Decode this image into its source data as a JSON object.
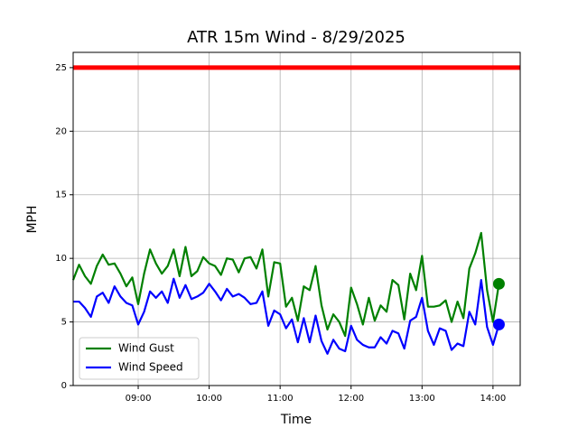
{
  "chart_data": {
    "type": "line",
    "title": "ATR 15m Wind - 8/29/2025",
    "xlabel": "Time",
    "ylabel": "MPH",
    "x": [
      "08:05",
      "08:10",
      "08:15",
      "08:20",
      "08:25",
      "08:30",
      "08:35",
      "08:40",
      "08:45",
      "08:50",
      "08:55",
      "09:00",
      "09:05",
      "09:10",
      "09:15",
      "09:20",
      "09:25",
      "09:30",
      "09:35",
      "09:40",
      "09:45",
      "09:50",
      "09:55",
      "10:00",
      "10:05",
      "10:10",
      "10:15",
      "10:20",
      "10:25",
      "10:30",
      "10:35",
      "10:40",
      "10:45",
      "10:50",
      "10:55",
      "11:00",
      "11:05",
      "11:10",
      "11:15",
      "11:20",
      "11:25",
      "11:30",
      "11:35",
      "11:40",
      "11:45",
      "11:50",
      "11:55",
      "12:00",
      "12:05",
      "12:10",
      "12:15",
      "12:20",
      "12:25",
      "12:30",
      "12:35",
      "12:40",
      "12:45",
      "12:50",
      "12:55",
      "13:00",
      "13:05",
      "13:10",
      "13:15",
      "13:20",
      "13:25",
      "13:30",
      "13:35",
      "13:40",
      "13:45",
      "13:50",
      "13:55",
      "14:00",
      "14:05"
    ],
    "series": [
      {
        "name": "Wind Gust",
        "color": "#008000",
        "values": [
          8.3,
          9.5,
          8.6,
          8.0,
          9.4,
          10.3,
          9.5,
          9.6,
          8.8,
          7.8,
          8.5,
          6.4,
          8.8,
          10.7,
          9.6,
          8.8,
          9.4,
          10.7,
          8.6,
          10.9,
          8.6,
          9.0,
          10.1,
          9.6,
          9.4,
          8.7,
          10.0,
          9.9,
          8.9,
          10.0,
          10.1,
          9.2,
          10.7,
          7.0,
          9.7,
          9.6,
          6.2,
          6.9,
          5.1,
          7.8,
          7.5,
          9.4,
          6.3,
          4.4,
          5.6,
          5.0,
          3.9,
          7.7,
          6.4,
          4.8,
          6.9,
          5.1,
          6.3,
          5.8,
          8.3,
          7.9,
          5.2,
          8.8,
          7.5,
          10.2,
          6.2,
          6.2,
          6.3,
          6.7,
          5.0,
          6.6,
          5.3,
          9.2,
          10.4,
          12.0,
          7.5,
          5.0,
          8.0
        ]
      },
      {
        "name": "Wind Speed",
        "color": "#0000ff",
        "values": [
          6.6,
          6.6,
          6.1,
          5.4,
          7.0,
          7.3,
          6.5,
          7.8,
          7.0,
          6.5,
          6.3,
          4.8,
          5.8,
          7.4,
          6.9,
          7.4,
          6.5,
          8.4,
          6.9,
          7.9,
          6.8,
          7.0,
          7.3,
          8.0,
          7.4,
          6.7,
          7.6,
          7.0,
          7.2,
          6.9,
          6.4,
          6.5,
          7.4,
          4.7,
          5.9,
          5.6,
          4.5,
          5.2,
          3.4,
          5.3,
          3.4,
          5.5,
          3.5,
          2.5,
          3.6,
          2.9,
          2.7,
          4.7,
          3.6,
          3.2,
          3.0,
          3.0,
          3.8,
          3.3,
          4.3,
          4.1,
          2.9,
          5.1,
          5.4,
          6.9,
          4.3,
          3.2,
          4.5,
          4.3,
          2.8,
          3.3,
          3.1,
          5.8,
          4.8,
          8.3,
          4.6,
          3.2,
          4.8
        ]
      }
    ],
    "threshold": 25,
    "threshold_color": "#ff0000",
    "xlim": [
      "08:05",
      "14:23"
    ],
    "xticks": [
      "09:00",
      "10:00",
      "11:00",
      "12:00",
      "13:00",
      "14:00"
    ],
    "ylim": [
      0,
      26.2
    ],
    "yticks": [
      0,
      5,
      10,
      15,
      20,
      25
    ],
    "grid": true,
    "legend": "lower left"
  }
}
